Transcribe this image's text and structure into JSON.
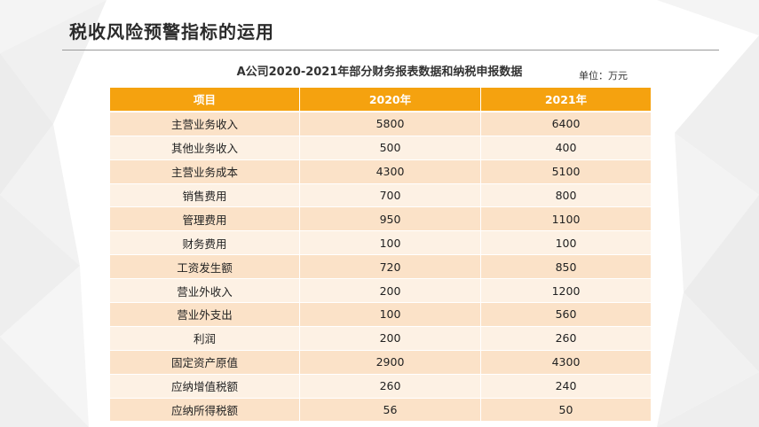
{
  "slide": {
    "title": "税收风险预警指标的运用"
  },
  "table": {
    "caption": "A公司2020-2021年部分财务报表数据和纳税申报数据",
    "unit": "单位：万元",
    "headers": [
      "项目",
      "2020年",
      "2021年"
    ],
    "rows": [
      {
        "item": "主营业务收入",
        "y2020": "5800",
        "y2021": "6400"
      },
      {
        "item": "其他业务收入",
        "y2020": "500",
        "y2021": "400"
      },
      {
        "item": "主营业务成本",
        "y2020": "4300",
        "y2021": "5100"
      },
      {
        "item": "销售费用",
        "y2020": "700",
        "y2021": "800"
      },
      {
        "item": "管理费用",
        "y2020": "950",
        "y2021": "1100"
      },
      {
        "item": "财务费用",
        "y2020": "100",
        "y2021": "100"
      },
      {
        "item": "工资发生额",
        "y2020": "720",
        "y2021": "850"
      },
      {
        "item": "营业外收入",
        "y2020": "200",
        "y2021": "1200"
      },
      {
        "item": "营业外支出",
        "y2020": "100",
        "y2021": "560"
      },
      {
        "item": "利润",
        "y2020": "200",
        "y2021": "260"
      },
      {
        "item": "固定资产原值",
        "y2020": "2900",
        "y2021": "4300"
      },
      {
        "item": "应纳增值税额",
        "y2020": "260",
        "y2021": "240"
      },
      {
        "item": "应纳所得税额",
        "y2020": "56",
        "y2021": "50"
      }
    ]
  },
  "colors": {
    "header_bg": "#f5a20f",
    "row_odd": "#fbe2c8",
    "row_even": "#fdf1e4"
  }
}
